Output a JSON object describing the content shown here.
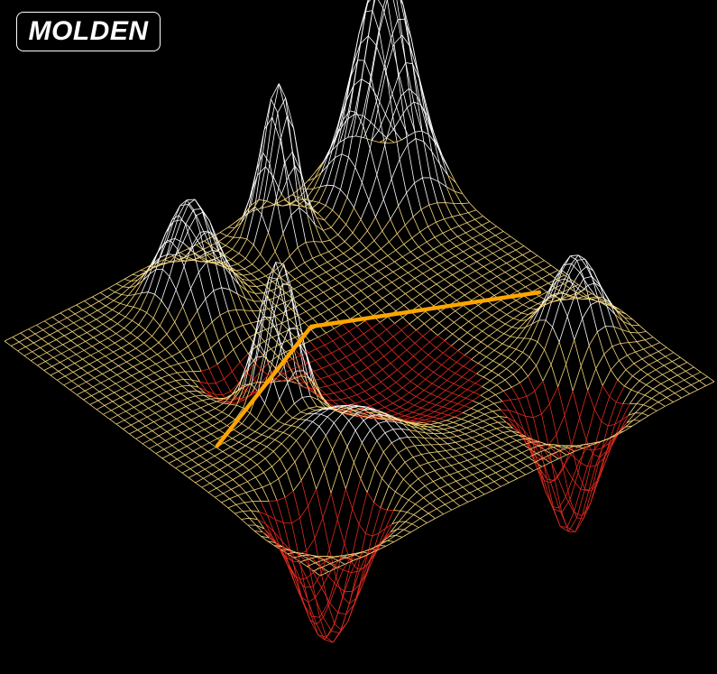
{
  "app": {
    "logo_text": "MOLDEN"
  },
  "colors": {
    "background": "#000000",
    "mesh_high": "#ffffff",
    "mesh_mid": "#f5d67a",
    "mesh_low": "#e02a20",
    "path_line": "#ffa500"
  },
  "surface": {
    "description_type": "3d-wireframe-surface",
    "grid_lines": 48
  }
}
